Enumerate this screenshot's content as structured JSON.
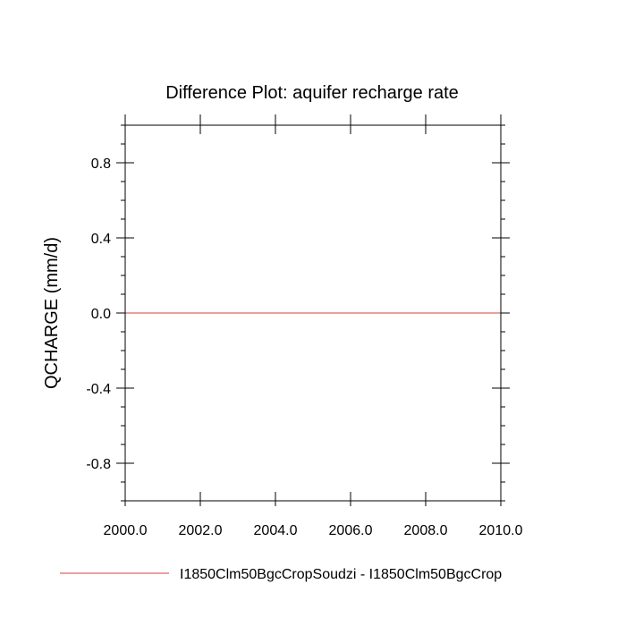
{
  "chart_data": {
    "type": "line",
    "title": "Difference Plot: aquifer recharge rate",
    "xlabel": "",
    "ylabel": "QCHARGE  (mm/d)",
    "xlim": [
      2000.0,
      2010.0
    ],
    "ylim": [
      -1.0,
      1.0
    ],
    "x_ticks": [
      "2000.0",
      "2002.0",
      "2004.0",
      "2006.0",
      "2008.0",
      "2010.0"
    ],
    "y_ticks": [
      "0.8",
      "0.4",
      "0.0",
      "-0.4",
      "-0.8"
    ],
    "grid": false,
    "legend_position": "bottom",
    "series": [
      {
        "name": "I1850Clm50BgcCropSoudzi - I1850Clm50BgcCrop",
        "color": "#e06666",
        "x": [
          2000.0,
          2010.0
        ],
        "y": [
          0.0,
          0.0
        ]
      }
    ]
  }
}
